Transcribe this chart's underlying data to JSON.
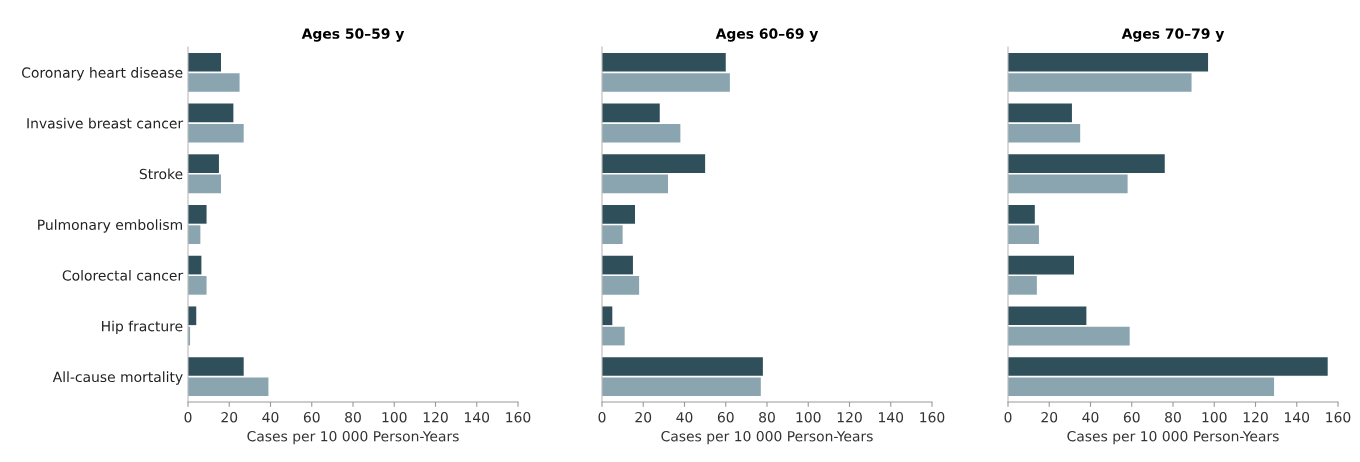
{
  "chart_data": [
    {
      "type": "bar",
      "orientation": "horizontal",
      "title": "Ages 50–59 y",
      "xlabel": "Cases per 10 000 Person-Years",
      "categories": [
        "Coronary heart disease",
        "Invasive breast cancer",
        "Stroke",
        "Pulmonary embolism",
        "Colorectal cancer",
        "Hip fracture",
        "All-cause mortality"
      ],
      "series": [
        {
          "color": "#2f4f5a",
          "values": [
            16,
            22,
            15,
            9,
            6.5,
            4,
            27
          ]
        },
        {
          "color": "#8aa5b0",
          "values": [
            25,
            27,
            16,
            6,
            9,
            1,
            39
          ]
        }
      ],
      "xlim": [
        0,
        160
      ],
      "xticks": [
        0,
        20,
        40,
        60,
        80,
        100,
        120,
        140,
        160
      ],
      "grid": false
    },
    {
      "type": "bar",
      "orientation": "horizontal",
      "title": "Ages 60–69 y",
      "xlabel": "Cases per 10 000 Person-Years",
      "categories": [
        null,
        null,
        null,
        null,
        null,
        null,
        null
      ],
      "series": [
        {
          "color": "#2f4f5a",
          "values": [
            60,
            28,
            50,
            16,
            15,
            5,
            78
          ]
        },
        {
          "color": "#8aa5b0",
          "values": [
            62,
            38,
            32,
            10,
            18,
            11,
            77
          ]
        }
      ],
      "xlim": [
        0,
        160
      ],
      "xticks": [
        0,
        20,
        40,
        60,
        80,
        100,
        120,
        140,
        160
      ],
      "grid": false
    },
    {
      "type": "bar",
      "orientation": "horizontal",
      "title": "Ages 70–79 y",
      "xlabel": "Cases per 10 000 Person-Years",
      "categories": [
        null,
        null,
        null,
        null,
        null,
        null,
        null
      ],
      "series": [
        {
          "color": "#2f4f5a",
          "values": [
            97,
            31,
            76,
            13,
            32,
            38,
            155
          ]
        },
        {
          "color": "#8aa5b0",
          "values": [
            89,
            35,
            58,
            15,
            14,
            59,
            129
          ]
        }
      ],
      "xlim": [
        0,
        160
      ],
      "xticks": [
        0,
        20,
        40,
        60,
        80,
        100,
        120,
        140,
        160
      ],
      "grid": false
    }
  ]
}
